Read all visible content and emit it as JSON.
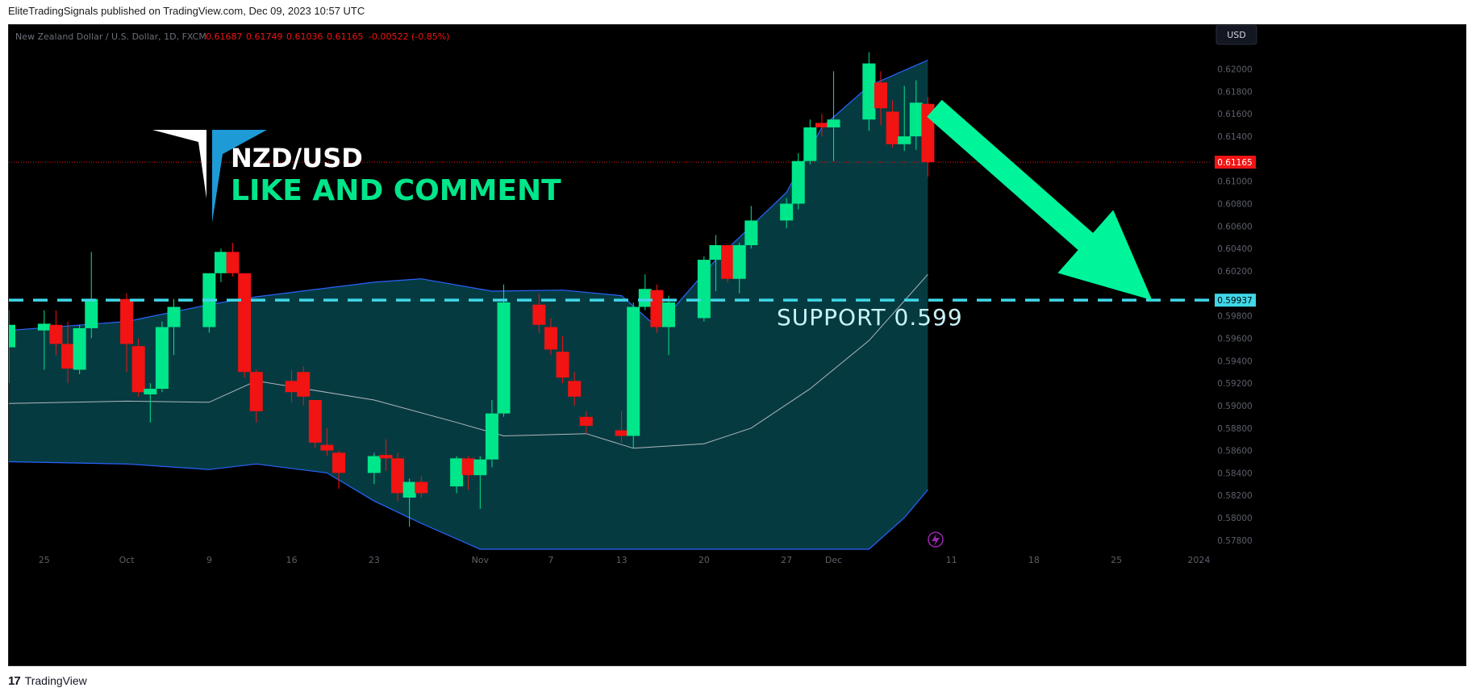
{
  "header": {
    "publish_line": "EliteTradingSignals published on TradingView.com, Dec 09, 2023 10:57 UTC"
  },
  "footer": {
    "logo_mark": "17",
    "brand": "TradingView"
  },
  "chart_data": {
    "type": "candlestick",
    "symbol_line": "New Zealand Dollar / U.S. Dollar, 1D, FXCM",
    "ohlc_readout": {
      "open": "0.61687",
      "high": "0.61749",
      "low": "0.61036",
      "close": "0.61165",
      "change": "-0.00522 (-0.85%)"
    },
    "currency_button": "USD",
    "y_ticks": [
      "0.62000",
      "0.61800",
      "0.61600",
      "0.61400",
      "0.61000",
      "0.60800",
      "0.60600",
      "0.60400",
      "0.60200",
      "0.59800",
      "0.59600",
      "0.59400",
      "0.59200",
      "0.59000",
      "0.58800",
      "0.58600",
      "0.58400",
      "0.58200",
      "0.58000",
      "0.57800"
    ],
    "x_ticks": [
      {
        "label": "25",
        "date": "2023-09-25"
      },
      {
        "label": "Oct",
        "date": "2023-10-02"
      },
      {
        "label": "9",
        "date": "2023-10-09"
      },
      {
        "label": "16",
        "date": "2023-10-16"
      },
      {
        "label": "23",
        "date": "2023-10-23"
      },
      {
        "label": "Nov",
        "date": "2023-11-01"
      },
      {
        "label": "7",
        "date": "2023-11-07"
      },
      {
        "label": "13",
        "date": "2023-11-13"
      },
      {
        "label": "20",
        "date": "2023-11-20"
      },
      {
        "label": "27",
        "date": "2023-11-27"
      },
      {
        "label": "Dec",
        "date": "2023-12-01"
      },
      {
        "label": "11",
        "date": "2023-12-11"
      },
      {
        "label": "18",
        "date": "2023-12-18"
      },
      {
        "label": "25",
        "date": "2023-12-25"
      },
      {
        "label": "2024",
        "date": "2024-01-01"
      }
    ],
    "ylim": [
      0.5772,
      0.6222
    ],
    "xlim": [
      "2023-09-22",
      "2024-01-02"
    ],
    "last_price_label": "0.61165",
    "support_price_label": "0.59937",
    "support_level": 0.5994,
    "candles": [
      {
        "date": "2023-09-22",
        "o": 0.5952,
        "h": 0.5985,
        "l": 0.592,
        "c": 0.5972
      },
      {
        "date": "2023-09-25",
        "o": 0.5967,
        "h": 0.5985,
        "l": 0.5932,
        "c": 0.5973
      },
      {
        "date": "2023-09-26",
        "o": 0.5972,
        "h": 0.5985,
        "l": 0.5945,
        "c": 0.5955
      },
      {
        "date": "2023-09-27",
        "o": 0.5955,
        "h": 0.5975,
        "l": 0.592,
        "c": 0.5933
      },
      {
        "date": "2023-09-28",
        "o": 0.5932,
        "h": 0.5972,
        "l": 0.5928,
        "c": 0.5969
      },
      {
        "date": "2023-09-29",
        "o": 0.5969,
        "h": 0.6037,
        "l": 0.596,
        "c": 0.5995
      },
      {
        "date": "2023-10-02",
        "o": 0.5995,
        "h": 0.6,
        "l": 0.593,
        "c": 0.5955
      },
      {
        "date": "2023-10-03",
        "o": 0.5953,
        "h": 0.596,
        "l": 0.5908,
        "c": 0.5912
      },
      {
        "date": "2023-10-04",
        "o": 0.591,
        "h": 0.592,
        "l": 0.5885,
        "c": 0.5915
      },
      {
        "date": "2023-10-05",
        "o": 0.5915,
        "h": 0.5975,
        "l": 0.5912,
        "c": 0.597
      },
      {
        "date": "2023-10-06",
        "o": 0.597,
        "h": 0.5995,
        "l": 0.5945,
        "c": 0.5988
      },
      {
        "date": "2023-10-09",
        "o": 0.597,
        "h": 0.6018,
        "l": 0.5965,
        "c": 0.6018
      },
      {
        "date": "2023-10-10",
        "o": 0.6018,
        "h": 0.604,
        "l": 0.601,
        "c": 0.6037
      },
      {
        "date": "2023-10-11",
        "o": 0.6037,
        "h": 0.6045,
        "l": 0.6015,
        "c": 0.6018
      },
      {
        "date": "2023-10-12",
        "o": 0.6018,
        "h": 0.6018,
        "l": 0.5925,
        "c": 0.593
      },
      {
        "date": "2023-10-13",
        "o": 0.593,
        "h": 0.5932,
        "l": 0.5885,
        "c": 0.5895
      },
      {
        "date": "2023-10-16",
        "o": 0.5922,
        "h": 0.5932,
        "l": 0.5903,
        "c": 0.5912
      },
      {
        "date": "2023-10-17",
        "o": 0.593,
        "h": 0.5935,
        "l": 0.59,
        "c": 0.5908
      },
      {
        "date": "2023-10-18",
        "o": 0.5905,
        "h": 0.5905,
        "l": 0.5862,
        "c": 0.5867
      },
      {
        "date": "2023-10-19",
        "o": 0.5865,
        "h": 0.588,
        "l": 0.5855,
        "c": 0.586
      },
      {
        "date": "2023-10-20",
        "o": 0.5858,
        "h": 0.586,
        "l": 0.5826,
        "c": 0.584
      },
      {
        "date": "2023-10-23",
        "o": 0.584,
        "h": 0.5858,
        "l": 0.583,
        "c": 0.5855
      },
      {
        "date": "2023-10-24",
        "o": 0.5856,
        "h": 0.587,
        "l": 0.5842,
        "c": 0.5853
      },
      {
        "date": "2023-10-25",
        "o": 0.5853,
        "h": 0.5858,
        "l": 0.5815,
        "c": 0.5822
      },
      {
        "date": "2023-10-26",
        "o": 0.5818,
        "h": 0.5835,
        "l": 0.5792,
        "c": 0.5832
      },
      {
        "date": "2023-10-27",
        "o": 0.5832,
        "h": 0.5837,
        "l": 0.5818,
        "c": 0.5822
      },
      {
        "date": "2023-10-30",
        "o": 0.5828,
        "h": 0.5855,
        "l": 0.5822,
        "c": 0.5853
      },
      {
        "date": "2023-10-31",
        "o": 0.5853,
        "h": 0.5855,
        "l": 0.5825,
        "c": 0.5838
      },
      {
        "date": "2023-11-01",
        "o": 0.5838,
        "h": 0.5855,
        "l": 0.5808,
        "c": 0.5852
      },
      {
        "date": "2023-11-02",
        "o": 0.5852,
        "h": 0.5905,
        "l": 0.5845,
        "c": 0.5893
      },
      {
        "date": "2023-11-03",
        "o": 0.5893,
        "h": 0.6008,
        "l": 0.589,
        "c": 0.5992
      },
      {
        "date": "2023-11-06",
        "o": 0.599,
        "h": 0.6,
        "l": 0.5965,
        "c": 0.5972
      },
      {
        "date": "2023-11-07",
        "o": 0.597,
        "h": 0.5978,
        "l": 0.5945,
        "c": 0.595
      },
      {
        "date": "2023-11-08",
        "o": 0.5948,
        "h": 0.5962,
        "l": 0.592,
        "c": 0.5925
      },
      {
        "date": "2023-11-09",
        "o": 0.5922,
        "h": 0.593,
        "l": 0.59,
        "c": 0.5908
      },
      {
        "date": "2023-11-10",
        "o": 0.589,
        "h": 0.5895,
        "l": 0.5875,
        "c": 0.5882
      },
      {
        "date": "2023-11-13",
        "o": 0.5878,
        "h": 0.5895,
        "l": 0.5867,
        "c": 0.5873
      },
      {
        "date": "2023-11-14",
        "o": 0.5873,
        "h": 0.5992,
        "l": 0.5862,
        "c": 0.5988
      },
      {
        "date": "2023-11-15",
        "o": 0.5988,
        "h": 0.6017,
        "l": 0.5985,
        "c": 0.6004
      },
      {
        "date": "2023-11-16",
        "o": 0.6003,
        "h": 0.6008,
        "l": 0.5965,
        "c": 0.597
      },
      {
        "date": "2023-11-17",
        "o": 0.597,
        "h": 0.5998,
        "l": 0.5945,
        "c": 0.5992
      },
      {
        "date": "2023-11-20",
        "o": 0.5978,
        "h": 0.6033,
        "l": 0.5975,
        "c": 0.603
      },
      {
        "date": "2023-11-21",
        "o": 0.603,
        "h": 0.6052,
        "l": 0.6002,
        "c": 0.6043
      },
      {
        "date": "2023-11-22",
        "o": 0.6043,
        "h": 0.6043,
        "l": 0.601,
        "c": 0.6013
      },
      {
        "date": "2023-11-23",
        "o": 0.6013,
        "h": 0.6045,
        "l": 0.6,
        "c": 0.6043
      },
      {
        "date": "2023-11-24",
        "o": 0.6043,
        "h": 0.6078,
        "l": 0.604,
        "c": 0.6065
      },
      {
        "date": "2023-11-27",
        "o": 0.6065,
        "h": 0.6085,
        "l": 0.6058,
        "c": 0.608
      },
      {
        "date": "2023-11-28",
        "o": 0.608,
        "h": 0.6125,
        "l": 0.6075,
        "c": 0.6118
      },
      {
        "date": "2023-11-29",
        "o": 0.6118,
        "h": 0.6155,
        "l": 0.6115,
        "c": 0.6148
      },
      {
        "date": "2023-11-30",
        "o": 0.6152,
        "h": 0.616,
        "l": 0.614,
        "c": 0.6148
      },
      {
        "date": "2023-12-01",
        "o": 0.6148,
        "h": 0.6198,
        "l": 0.6118,
        "c": 0.6155
      },
      {
        "date": "2023-12-04",
        "o": 0.6155,
        "h": 0.6215,
        "l": 0.6145,
        "c": 0.6205
      },
      {
        "date": "2023-12-05",
        "o": 0.6188,
        "h": 0.6198,
        "l": 0.615,
        "c": 0.6165
      },
      {
        "date": "2023-12-06",
        "o": 0.6162,
        "h": 0.6172,
        "l": 0.613,
        "c": 0.6133
      },
      {
        "date": "2023-12-07",
        "o": 0.6133,
        "h": 0.6185,
        "l": 0.6127,
        "c": 0.614
      },
      {
        "date": "2023-12-08",
        "o": 0.614,
        "h": 0.619,
        "l": 0.6128,
        "c": 0.617
      },
      {
        "date": "2023-12-09",
        "o": 0.6169,
        "h": 0.6175,
        "l": 0.6104,
        "c": 0.6117
      }
    ],
    "bollinger": {
      "upper": [
        {
          "date": "2023-09-22",
          "v": 0.5967
        },
        {
          "date": "2023-10-02",
          "v": 0.5975
        },
        {
          "date": "2023-10-09",
          "v": 0.599
        },
        {
          "date": "2023-10-13",
          "v": 0.5997
        },
        {
          "date": "2023-10-23",
          "v": 0.601
        },
        {
          "date": "2023-10-27",
          "v": 0.6013
        },
        {
          "date": "2023-11-02",
          "v": 0.6002
        },
        {
          "date": "2023-11-08",
          "v": 0.6003
        },
        {
          "date": "2023-11-13",
          "v": 0.5998
        },
        {
          "date": "2023-11-16",
          "v": 0.597
        },
        {
          "date": "2023-11-21",
          "v": 0.603
        },
        {
          "date": "2023-11-27",
          "v": 0.609
        },
        {
          "date": "2023-11-30",
          "v": 0.6148
        },
        {
          "date": "2023-12-04",
          "v": 0.6185
        },
        {
          "date": "2023-12-09",
          "v": 0.6208
        }
      ],
      "middle": [
        {
          "date": "2023-09-22",
          "v": 0.5902
        },
        {
          "date": "2023-10-02",
          "v": 0.5904
        },
        {
          "date": "2023-10-09",
          "v": 0.5903
        },
        {
          "date": "2023-10-13",
          "v": 0.5922
        },
        {
          "date": "2023-10-23",
          "v": 0.5905
        },
        {
          "date": "2023-10-30",
          "v": 0.5885
        },
        {
          "date": "2023-11-03",
          "v": 0.5873
        },
        {
          "date": "2023-11-10",
          "v": 0.5875
        },
        {
          "date": "2023-11-14",
          "v": 0.5862
        },
        {
          "date": "2023-11-20",
          "v": 0.5866
        },
        {
          "date": "2023-11-24",
          "v": 0.588
        },
        {
          "date": "2023-11-29",
          "v": 0.5915
        },
        {
          "date": "2023-12-04",
          "v": 0.5958
        },
        {
          "date": "2023-12-09",
          "v": 0.6017
        }
      ],
      "lower": [
        {
          "date": "2023-09-22",
          "v": 0.585
        },
        {
          "date": "2023-10-02",
          "v": 0.5848
        },
        {
          "date": "2023-10-09",
          "v": 0.5843
        },
        {
          "date": "2023-10-13",
          "v": 0.5848
        },
        {
          "date": "2023-10-19",
          "v": 0.584
        },
        {
          "date": "2023-10-23",
          "v": 0.5815
        },
        {
          "date": "2023-10-27",
          "v": 0.5795
        },
        {
          "date": "2023-11-01",
          "v": 0.5772
        },
        {
          "date": "2023-12-04",
          "v": 0.5772
        },
        {
          "date": "2023-12-07",
          "v": 0.58
        },
        {
          "date": "2023-12-09",
          "v": 0.5825
        }
      ]
    },
    "annotations": {
      "title": "NZD/USD",
      "subtitle": "LIKE AND COMMENT",
      "support_text": "SUPPORT  0.599"
    },
    "colors": {
      "background": "#000000",
      "up": "#00e68a",
      "down": "#f21313",
      "band_fill": "#053b40",
      "band_line": "#2962ff",
      "middle_line": "#b2b5be",
      "support_line": "#3fd8e8",
      "arrow": "#00f59b",
      "logo_blue": "#1e9bd7",
      "title_white": "#ffffff",
      "subtitle_green": "#00e68a"
    }
  }
}
